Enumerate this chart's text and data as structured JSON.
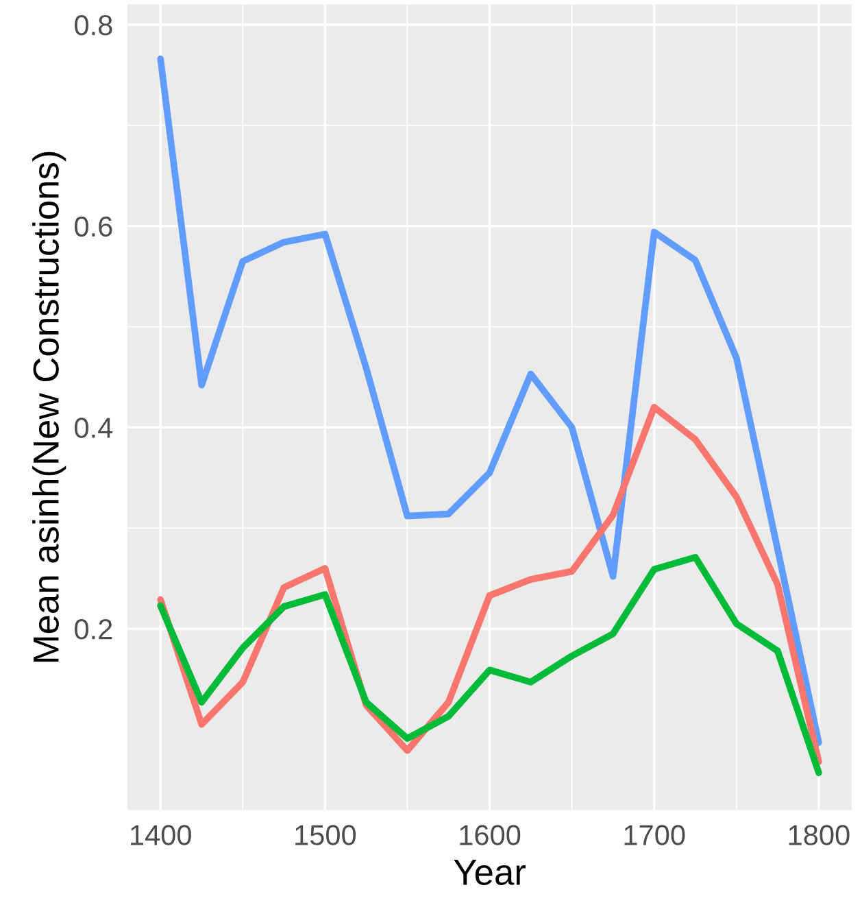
{
  "chart_data": {
    "type": "line",
    "xlabel": "Year",
    "ylabel": "Mean asinh(New Constructions)",
    "x": [
      1400,
      1425,
      1450,
      1475,
      1500,
      1525,
      1550,
      1575,
      1600,
      1625,
      1650,
      1675,
      1700,
      1725,
      1750,
      1775,
      1800
    ],
    "series": [
      {
        "color": "#619cff",
        "values": [
          0.766,
          0.442,
          0.565,
          0.584,
          0.592,
          0.459,
          0.312,
          0.314,
          0.355,
          0.453,
          0.4,
          0.252,
          0.594,
          0.566,
          0.469,
          0.279,
          0.087
        ]
      },
      {
        "color": "#f8766d",
        "values": [
          0.229,
          0.105,
          0.147,
          0.241,
          0.26,
          0.124,
          0.079,
          0.127,
          0.233,
          0.249,
          0.257,
          0.313,
          0.42,
          0.388,
          0.331,
          0.244,
          0.068
        ]
      },
      {
        "color": "#00ba38",
        "values": [
          0.223,
          0.127,
          0.181,
          0.222,
          0.234,
          0.127,
          0.091,
          0.113,
          0.159,
          0.147,
          0.173,
          0.195,
          0.259,
          0.271,
          0.205,
          0.178,
          0.057
        ]
      }
    ],
    "xlim": [
      1380,
      1820
    ],
    "ylim": [
      0.02,
      0.82
    ],
    "xticks": [
      1400,
      1500,
      1600,
      1700,
      1800
    ],
    "yticks": [
      {
        "value": 0.2,
        "label": "0.2"
      },
      {
        "value": 0.4,
        "label": "0.4"
      },
      {
        "value": 0.6,
        "label": "0.6"
      },
      {
        "value": 0.8,
        "label": "0.8"
      }
    ],
    "grid": true,
    "legend": false
  }
}
